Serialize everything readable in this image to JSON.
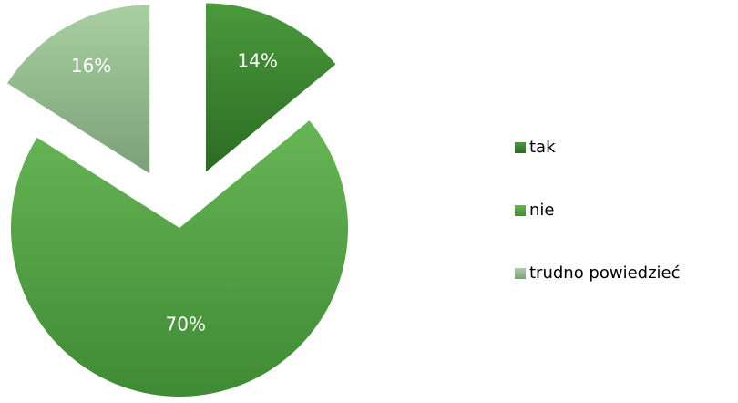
{
  "chart_data": {
    "type": "pie",
    "categories": [
      "tak",
      "nie",
      "trudno powiedzieć"
    ],
    "values": [
      14,
      70,
      16
    ],
    "value_labels": [
      "14%",
      "70%",
      "16%"
    ],
    "colors": {
      "tak": {
        "light": "#4a9a3c",
        "dark": "#2c6b23"
      },
      "nie": {
        "light": "#67b655",
        "dark": "#3f8a34"
      },
      "trudno powiedzieć": {
        "light": "#a9cfa1",
        "dark": "#7ba079"
      }
    },
    "legend_position": "right",
    "label_color": "#ffffff",
    "legend_text_color": "#000000"
  }
}
